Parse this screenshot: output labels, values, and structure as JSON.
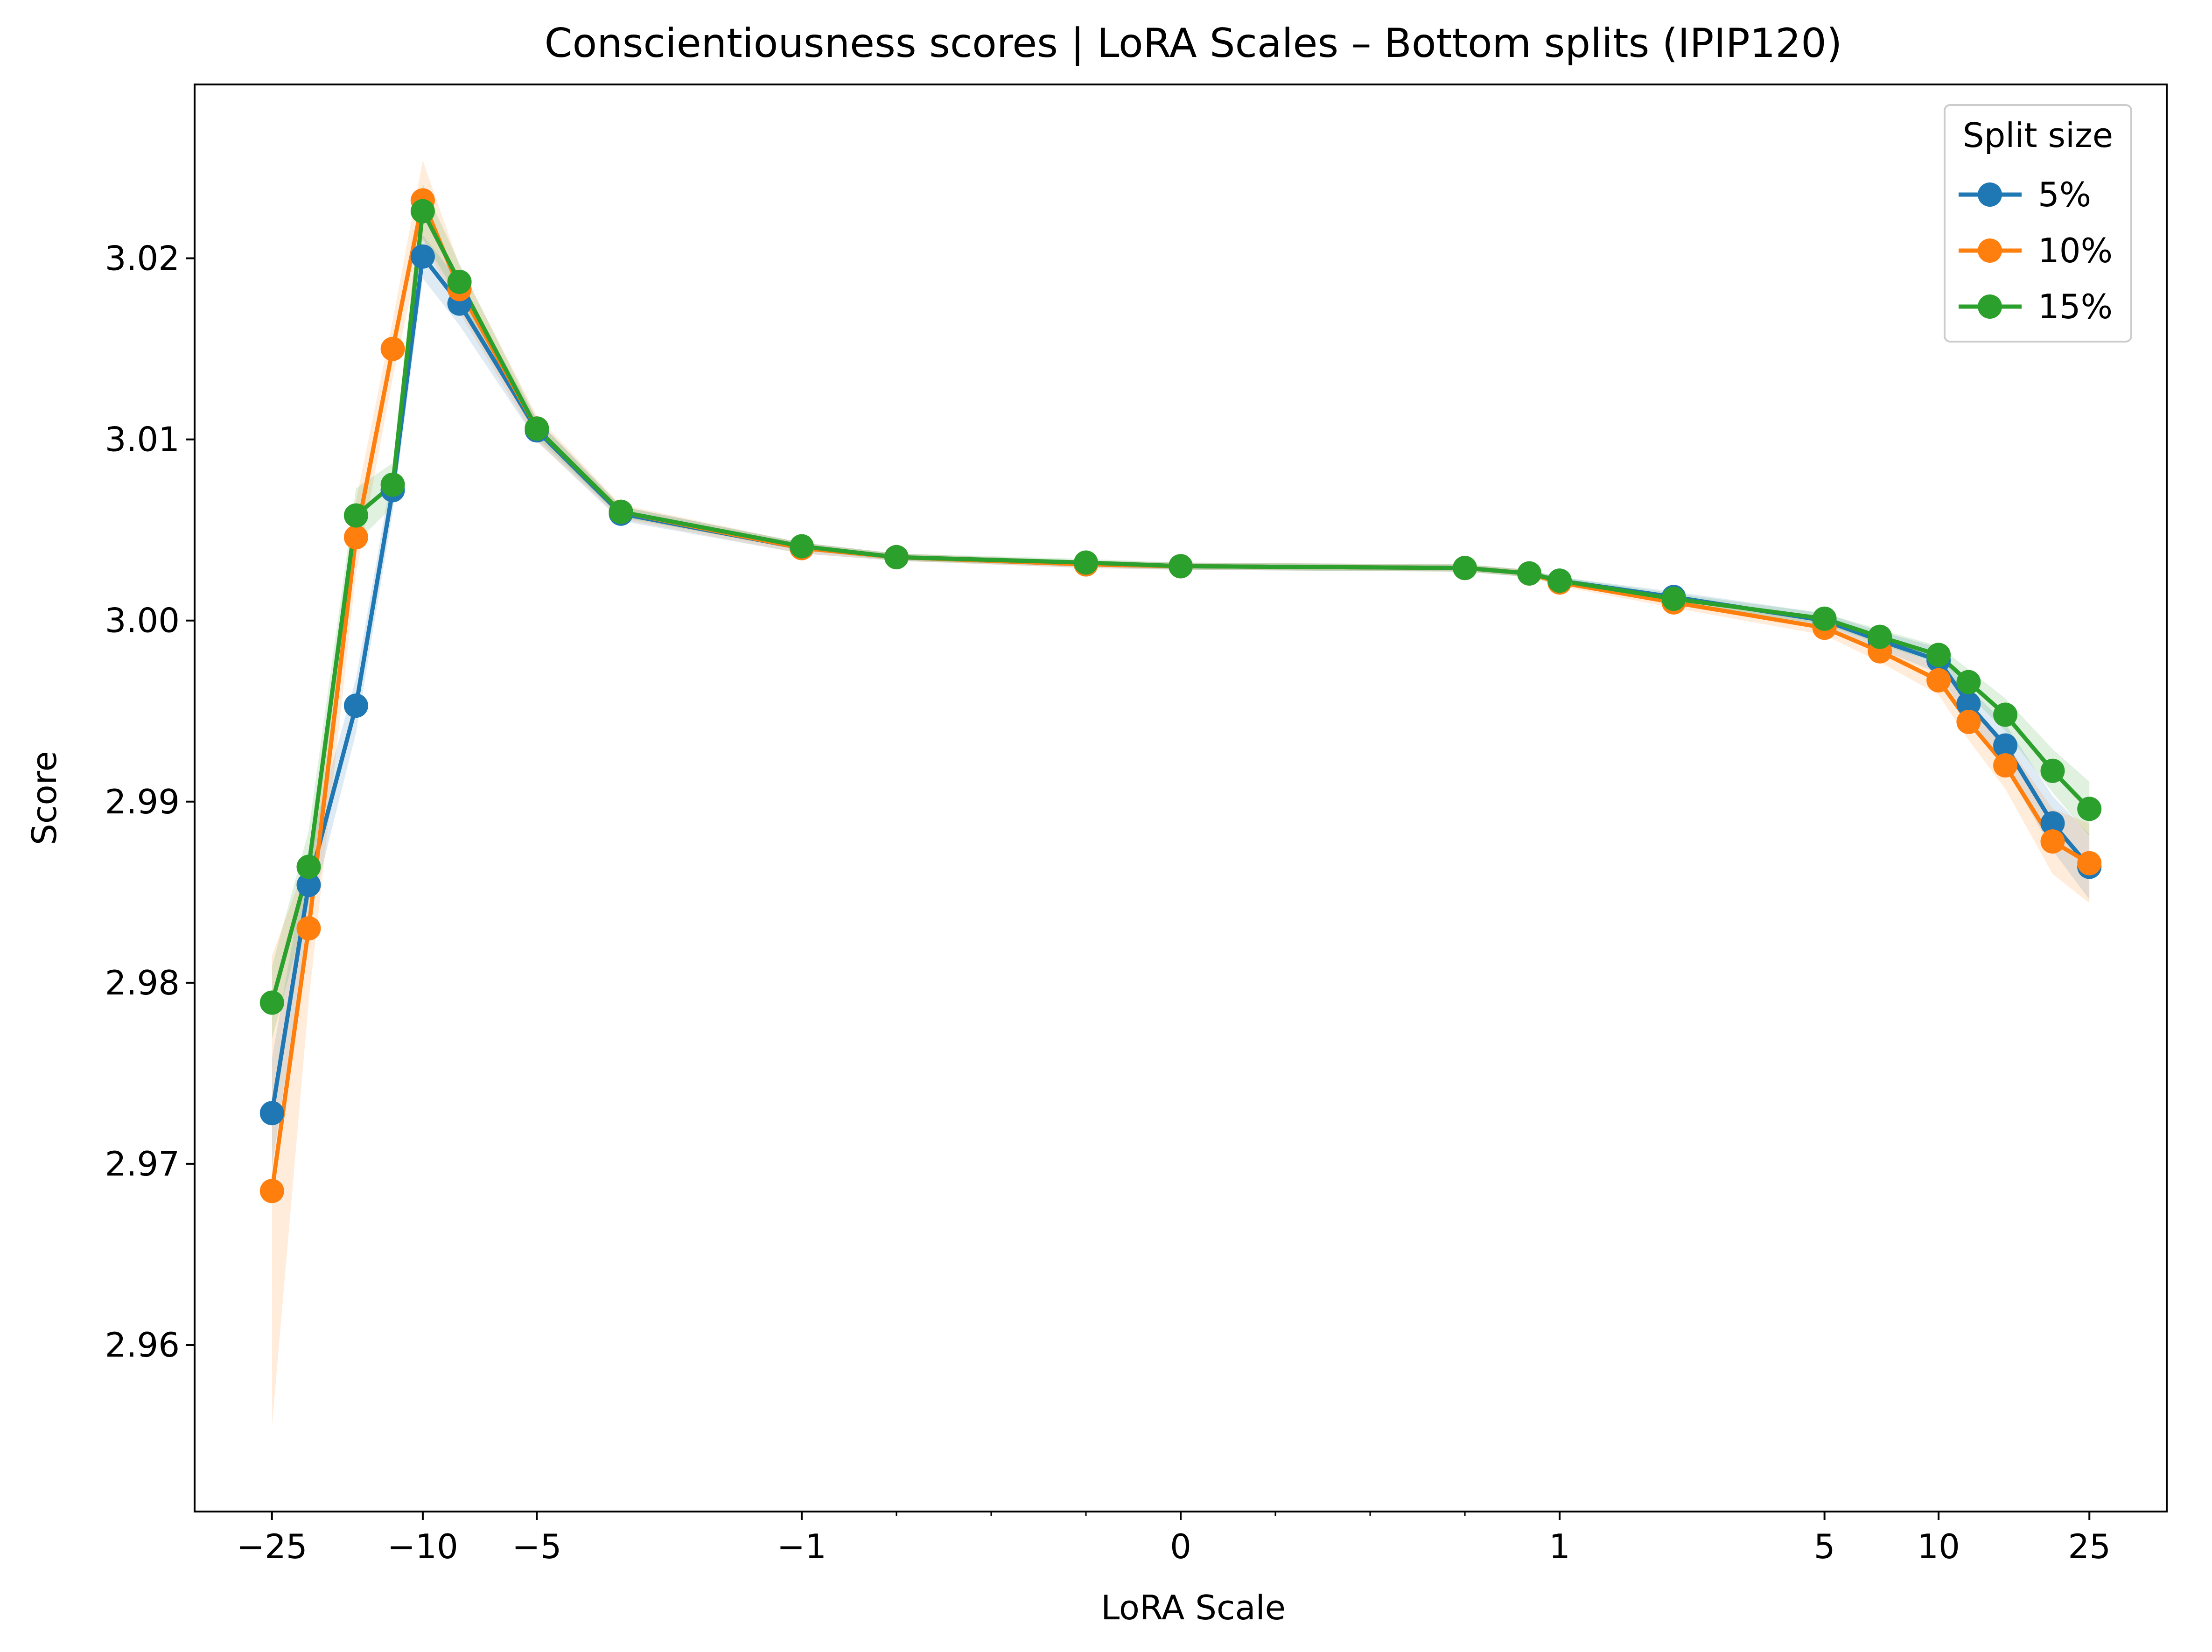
{
  "chart_data": {
    "type": "line",
    "title": "Conscientiousness scores | LoRA Scales – Bottom splits (IPIP120)",
    "xlabel": "LoRA Scale",
    "ylabel": "Score",
    "x_scale": "symlog",
    "xlim": [
      -40,
      40
    ],
    "ylim": [
      2.9508,
      3.0296
    ],
    "xticks": [
      {
        "value": -25,
        "label": "−25"
      },
      {
        "value": -10,
        "label": "−10"
      },
      {
        "value": -5,
        "label": "−5"
      },
      {
        "value": -1,
        "label": "−1"
      },
      {
        "value": 0,
        "label": "0"
      },
      {
        "value": 1,
        "label": "1"
      },
      {
        "value": 5,
        "label": "5"
      },
      {
        "value": 10,
        "label": "10"
      },
      {
        "value": 25,
        "label": "25"
      }
    ],
    "xminor_ticks": [
      -0.75,
      -0.5,
      -0.25,
      0.25,
      0.5,
      0.75
    ],
    "yticks": [
      {
        "value": 2.96,
        "label": "2.96"
      },
      {
        "value": 2.97,
        "label": "2.97"
      },
      {
        "value": 2.98,
        "label": "2.98"
      },
      {
        "value": 2.99,
        "label": "2.99"
      },
      {
        "value": 3.0,
        "label": "3.00"
      },
      {
        "value": 3.01,
        "label": "3.01"
      },
      {
        "value": 3.02,
        "label": "3.02"
      }
    ],
    "grid": false,
    "legend": {
      "title": "Split size",
      "position": "top-right"
    },
    "x": [
      -25,
      -20,
      -15,
      -12,
      -10,
      -8,
      -5,
      -3,
      -1,
      -0.75,
      -0.25,
      0,
      0.75,
      0.92,
      1,
      2,
      5,
      7,
      10,
      12,
      15,
      20,
      25
    ],
    "series": [
      {
        "name": "5%",
        "color": "#1f77b4",
        "values": [
          2.9728,
          2.9854,
          2.9953,
          3.0072,
          3.0201,
          3.0175,
          3.0105,
          3.0059,
          3.004,
          3.0035,
          3.0031,
          3.003,
          3.0029,
          3.0026,
          3.0022,
          3.0013,
          3.0,
          2.9989,
          2.9978,
          2.9954,
          2.9931,
          2.9888,
          2.9864
        ],
        "band": [
          0.003,
          0.002,
          0.0015,
          0.0012,
          0.0012,
          0.0012,
          0.0006,
          0.0004,
          0.0003,
          0.0002,
          0.0002,
          0.0002,
          0.0002,
          0.0002,
          0.0002,
          0.0003,
          0.0004,
          0.0005,
          0.0007,
          0.0009,
          0.0012,
          0.0015,
          0.0018
        ]
      },
      {
        "name": "10%",
        "color": "#ff7f0e",
        "values": [
          2.9685,
          2.983,
          3.0046,
          3.015,
          3.0232,
          3.0183,
          3.0106,
          3.006,
          3.004,
          3.0035,
          3.0031,
          3.003,
          3.0029,
          3.0026,
          3.0021,
          3.001,
          2.9996,
          2.9983,
          2.9967,
          2.9944,
          2.992,
          2.9878,
          2.9866
        ],
        "band": [
          0.013,
          0.004,
          0.002,
          0.0016,
          0.0022,
          0.0013,
          0.0007,
          0.0004,
          0.0003,
          0.0002,
          0.0002,
          0.0002,
          0.0002,
          0.0002,
          0.0002,
          0.0003,
          0.0004,
          0.0006,
          0.0008,
          0.001,
          0.0013,
          0.0018,
          0.0022
        ]
      },
      {
        "name": "15%",
        "color": "#2ca02c",
        "values": [
          2.9789,
          2.9864,
          3.0058,
          3.0075,
          3.0226,
          3.0187,
          3.0106,
          3.006,
          3.0041,
          3.0035,
          3.0032,
          3.003,
          3.0029,
          3.0026,
          3.0022,
          3.0012,
          3.0001,
          2.9991,
          2.9981,
          2.9966,
          2.9948,
          2.9917,
          2.9896
        ],
        "band": [
          0.002,
          0.002,
          0.0015,
          0.0012,
          0.0015,
          0.001,
          0.0005,
          0.0003,
          0.0002,
          0.0002,
          0.0002,
          0.0002,
          0.0002,
          0.0002,
          0.0002,
          0.0003,
          0.0003,
          0.0004,
          0.0005,
          0.0007,
          0.0009,
          0.0012,
          0.0015
        ]
      }
    ]
  }
}
